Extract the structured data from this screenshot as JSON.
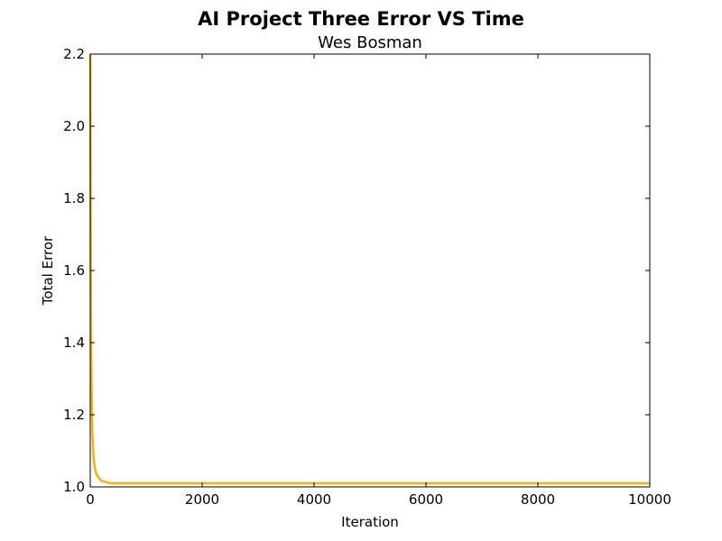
{
  "chart_data": {
    "type": "line",
    "title": "AI Project Three Error VS Time",
    "subtitle": "Wes Bosman",
    "xlabel": "Iteration",
    "ylabel": "Total Error",
    "xlim": [
      0,
      10000
    ],
    "ylim": [
      1.0,
      2.2
    ],
    "x_ticks": [
      "0",
      "2000",
      "4000",
      "6000",
      "8000",
      "10000"
    ],
    "y_ticks": [
      "1.0",
      "1.2",
      "1.4",
      "1.6",
      "1.8",
      "2.0",
      "2.2"
    ],
    "grid": false,
    "series": [
      {
        "color": "#ffb000",
        "x": [
          0,
          10,
          20,
          30,
          40,
          60,
          80,
          100,
          150,
          200,
          300,
          400,
          600,
          1000,
          2000,
          4000,
          6000,
          8000,
          10000
        ],
        "y": [
          2.2,
          1.55,
          1.33,
          1.21,
          1.14,
          1.08,
          1.055,
          1.04,
          1.025,
          1.017,
          1.012,
          1.01,
          1.01,
          1.01,
          1.01,
          1.01,
          1.01,
          1.01,
          1.01
        ]
      }
    ]
  }
}
